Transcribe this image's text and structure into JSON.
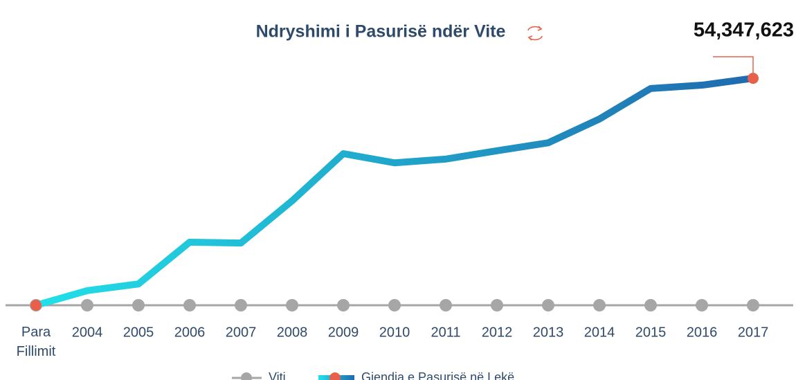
{
  "chart_data": {
    "type": "line",
    "title": "Ndryshimi i Pasurisë ndër Vite",
    "categories": [
      "Para Fillimit",
      "2004",
      "2005",
      "2006",
      "2007",
      "2008",
      "2009",
      "2010",
      "2011",
      "2012",
      "2013",
      "2014",
      "2015",
      "2016",
      "2017"
    ],
    "series": [
      {
        "name": "Viti",
        "color": "#a6a6a6",
        "values": [
          0,
          0,
          0,
          0,
          0,
          0,
          0,
          0,
          0,
          0,
          0,
          0,
          0,
          0,
          0
        ]
      },
      {
        "name": "Gjendja e Pasurisë në Lekë",
        "color": [
          "#22e0e8",
          "#1f6aad"
        ],
        "marker_color": "#e8604c",
        "values": [
          0,
          3500000,
          5100000,
          15100000,
          14900000,
          25000000,
          36300000,
          34100000,
          35000000,
          37000000,
          38900000,
          44600000,
          51900000,
          52700000,
          54347623
        ],
        "value_labels": [
          null,
          null,
          null,
          null,
          null,
          null,
          null,
          null,
          null,
          null,
          null,
          null,
          null,
          null,
          "54,347,623"
        ]
      }
    ],
    "ylim": [
      0,
      60000000
    ]
  }
}
